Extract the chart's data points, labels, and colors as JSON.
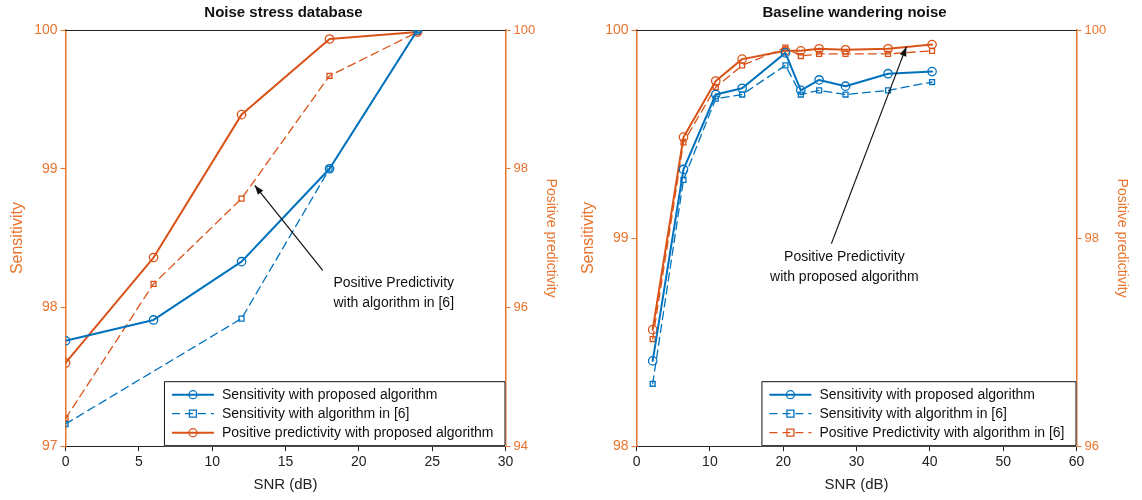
{
  "chart_data": [
    {
      "type": "line",
      "title": "Noise stress database",
      "xlabel": "SNR (dB)",
      "ylabel": "Sensitivity",
      "y2label": "Positive predictivity",
      "x": [
        0,
        6,
        12,
        18,
        24
      ],
      "xlim": [
        0,
        30
      ],
      "xticks": [
        0,
        5,
        10,
        15,
        20,
        25,
        30
      ],
      "ylim": [
        97,
        100
      ],
      "yticks": [
        97,
        98,
        99,
        100
      ],
      "y2lim": [
        94,
        100
      ],
      "y2ticks": [
        94,
        96,
        98,
        100
      ],
      "legend": "bottom right",
      "series": [
        {
          "name": "Sensitivity with proposed algorithm",
          "color": "#0072bd",
          "marker": "circle",
          "line_style": "solid",
          "values": [
            97.76,
            97.91,
            98.33,
            99.0,
            100.0
          ]
        },
        {
          "name": "Sensitivity with algorithm in [6]",
          "color": "#0072bd",
          "marker": "square",
          "line_style": "dashed",
          "values": [
            97.16,
            null,
            97.92,
            99.0,
            100.0
          ]
        },
        {
          "name": "Positive predictivity with proposed algorithm",
          "color": "#d95319",
          "marker": "circle",
          "line_style": "solid",
          "axis": "y2",
          "values": [
            95.2,
            96.72,
            98.78,
            99.87,
            99.97
          ]
        },
        {
          "color": "#d95319",
          "marker": "square",
          "line_style": "dashed",
          "axis": "y2",
          "values": [
            94.4,
            96.34,
            97.57,
            99.34,
            99.97
          ]
        }
      ],
      "annotations": [
        {
          "text": "Positive Predictivity\nwith algorithm in [6]",
          "x": 12.9,
          "y": 98.88
        }
      ]
    },
    {
      "type": "line",
      "title": "Baseline wandering noise",
      "xlabel": "SNR (dB)",
      "ylabel": "Sensitivity",
      "y2label": "Positive predictivity",
      "x": [
        2.2,
        6.4,
        10.8,
        14.4,
        20.3,
        22.4,
        24.9,
        28.5,
        34.3,
        40.3
      ],
      "xlim": [
        0,
        60
      ],
      "xticks": [
        0,
        10,
        20,
        30,
        40,
        50,
        60
      ],
      "ylim": [
        98,
        100
      ],
      "yticks": [
        98,
        99,
        100
      ],
      "y2lim": [
        96,
        100
      ],
      "y2ticks": [
        96,
        98,
        100
      ],
      "legend": "bottom right",
      "series": [
        {
          "name": "Sensitivity with proposed algorithm",
          "color": "#0072bd",
          "marker": "circle",
          "line_style": "solid",
          "values": [
            98.41,
            99.33,
            99.69,
            99.72,
            99.89,
            99.71,
            99.76,
            99.73,
            99.79,
            99.8
          ]
        },
        {
          "name": "Sensitivity with algorithm in [6]",
          "color": "#0072bd",
          "marker": "square",
          "line_style": "dashed",
          "values": [
            98.3,
            99.28,
            99.67,
            99.69,
            99.83,
            99.69,
            99.71,
            99.69,
            99.71,
            99.75
          ]
        },
        {
          "color": "#d95319",
          "marker": "circle",
          "line_style": "solid",
          "axis": "y2",
          "values": [
            97.12,
            98.97,
            99.51,
            99.72,
            99.8,
            99.8,
            99.82,
            99.81,
            99.82,
            99.86
          ]
        },
        {
          "name": "Positive Predictivity with algorithm in [6]",
          "color": "#d95319",
          "marker": "square",
          "line_style": "dashed",
          "axis": "y2",
          "values": [
            97.03,
            98.92,
            99.45,
            99.66,
            99.83,
            99.75,
            99.77,
            99.77,
            99.77,
            99.8
          ]
        }
      ],
      "annotations": [
        {
          "text": "Positive Predictivity\nwith proposed algorithm",
          "x": 36.8,
          "y": 99.92
        }
      ]
    }
  ]
}
